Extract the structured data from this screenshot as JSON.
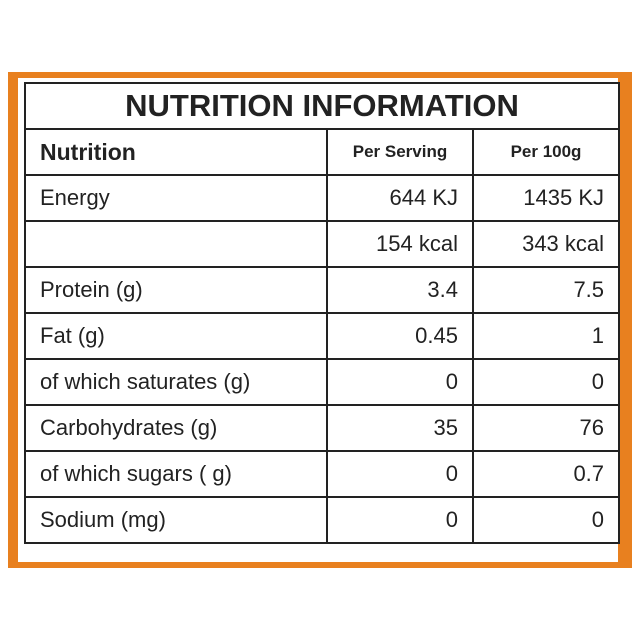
{
  "title": "NUTRITION INFORMATION",
  "table": {
    "header": [
      "Nutrition",
      "Per Serving",
      "Per 100g"
    ],
    "rows": [
      [
        "Energy",
        "644 KJ",
        "1435 KJ"
      ],
      [
        null,
        "154 kcal",
        "343 kcal"
      ],
      [
        "Protein (g)",
        3.4,
        7.5
      ],
      [
        "Fat (g)",
        0.45,
        1
      ],
      [
        "of which saturates (g)",
        0,
        0
      ],
      [
        "Carbohydrates (g)",
        35,
        76
      ],
      [
        "of which sugars ( g)",
        0,
        0.7
      ],
      [
        "Sodium (mg)",
        0,
        0
      ]
    ]
  }
}
